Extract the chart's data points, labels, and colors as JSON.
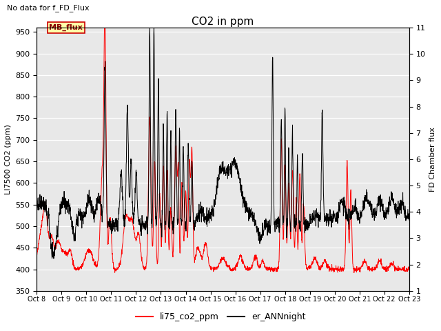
{
  "title": "CO2 in ppm",
  "top_left_text": "No data for f_FD_Flux",
  "ylabel_left": "LI7500 CO2 (ppm)",
  "ylabel_right": "FD Chamber flux",
  "ylim_left": [
    350,
    960
  ],
  "ylim_right": [
    1.0,
    11.0
  ],
  "yticks_left": [
    350,
    400,
    450,
    500,
    550,
    600,
    650,
    700,
    750,
    800,
    850,
    900,
    950
  ],
  "yticks_right": [
    1.0,
    2.0,
    3.0,
    4.0,
    5.0,
    6.0,
    7.0,
    8.0,
    9.0,
    10.0,
    11.0
  ],
  "xtick_labels": [
    "Oct 8",
    "Oct 9",
    "Oct 10",
    "Oct 11",
    "Oct 12",
    "Oct 13",
    "Oct 14",
    "Oct 15",
    "Oct 16",
    "Oct 17",
    "Oct 18",
    "Oct 19",
    "Oct 20",
    "Oct 21",
    "Oct 22",
    "Oct 23"
  ],
  "legend_labels": [
    "li75_co2_ppm",
    "er_ANNnight"
  ],
  "mb_flux_box_facecolor": "#ffffaa",
  "mb_flux_text_color": "#880000",
  "mb_flux_border_color": "#cc0000",
  "background_color": "#e8e8e8",
  "line_color_red": "#ff0000",
  "line_color_black": "#000000",
  "fig_width": 6.4,
  "fig_height": 4.8,
  "dpi": 100
}
